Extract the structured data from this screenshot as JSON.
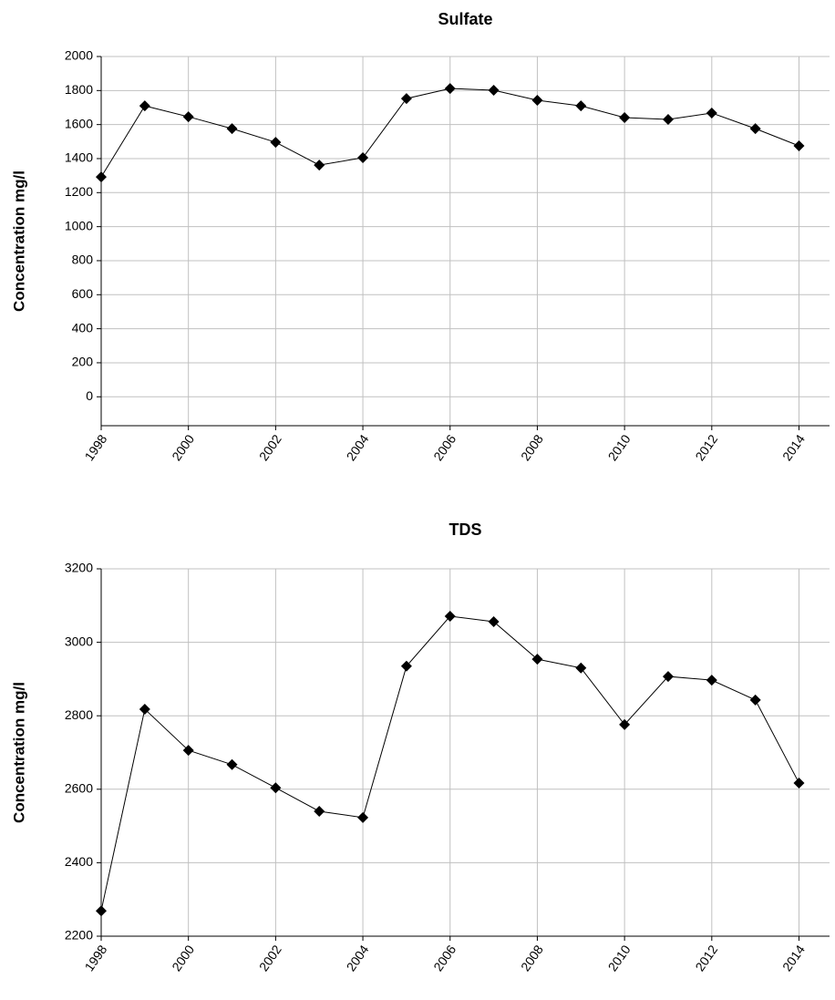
{
  "chart_data": [
    {
      "type": "line",
      "title": "Sulfate",
      "ylabel": "Concentration mg/l",
      "x": [
        1998,
        1999,
        2000,
        2001,
        2002,
        2003,
        2004,
        2005,
        2006,
        2007,
        2008,
        2009,
        2010,
        2011,
        2012,
        2013,
        2014
      ],
      "series": [
        {
          "color": "#000000",
          "values": [
            1292,
            1710,
            1646,
            1576,
            1496,
            1362,
            1405,
            1753,
            1812,
            1802,
            1743,
            1710,
            1641,
            1630,
            1668,
            1576,
            1475
          ]
        }
      ],
      "xlim": [
        1998,
        2014.7
      ],
      "xticks": [
        1998,
        2000,
        2002,
        2004,
        2006,
        2008,
        2010,
        2012,
        2014
      ],
      "ylim": [
        -170,
        2000
      ],
      "yticks": [
        0,
        200,
        400,
        600,
        800,
        1000,
        1200,
        1400,
        1600,
        1800,
        2000
      ],
      "grid": true
    },
    {
      "type": "line",
      "title": "TDS",
      "ylabel": "Concentration mg/l",
      "x": [
        1998,
        1999,
        2000,
        2001,
        2002,
        2003,
        2004,
        2005,
        2006,
        2007,
        2008,
        2009,
        2010,
        2011,
        2012,
        2013,
        2014
      ],
      "series": [
        {
          "color": "#000000",
          "values": [
            2269,
            2818,
            2706,
            2667,
            2604,
            2540,
            2523,
            2935,
            3071,
            3056,
            2954,
            2930,
            2776,
            2907,
            2897,
            2843,
            2617
          ]
        }
      ],
      "xlim": [
        1998,
        2014.7
      ],
      "xticks": [
        1998,
        2000,
        2002,
        2004,
        2006,
        2008,
        2010,
        2012,
        2014
      ],
      "ylim": [
        2200,
        3200
      ],
      "yticks": [
        2200,
        2400,
        2600,
        2800,
        3000,
        3200
      ],
      "grid": true
    }
  ]
}
